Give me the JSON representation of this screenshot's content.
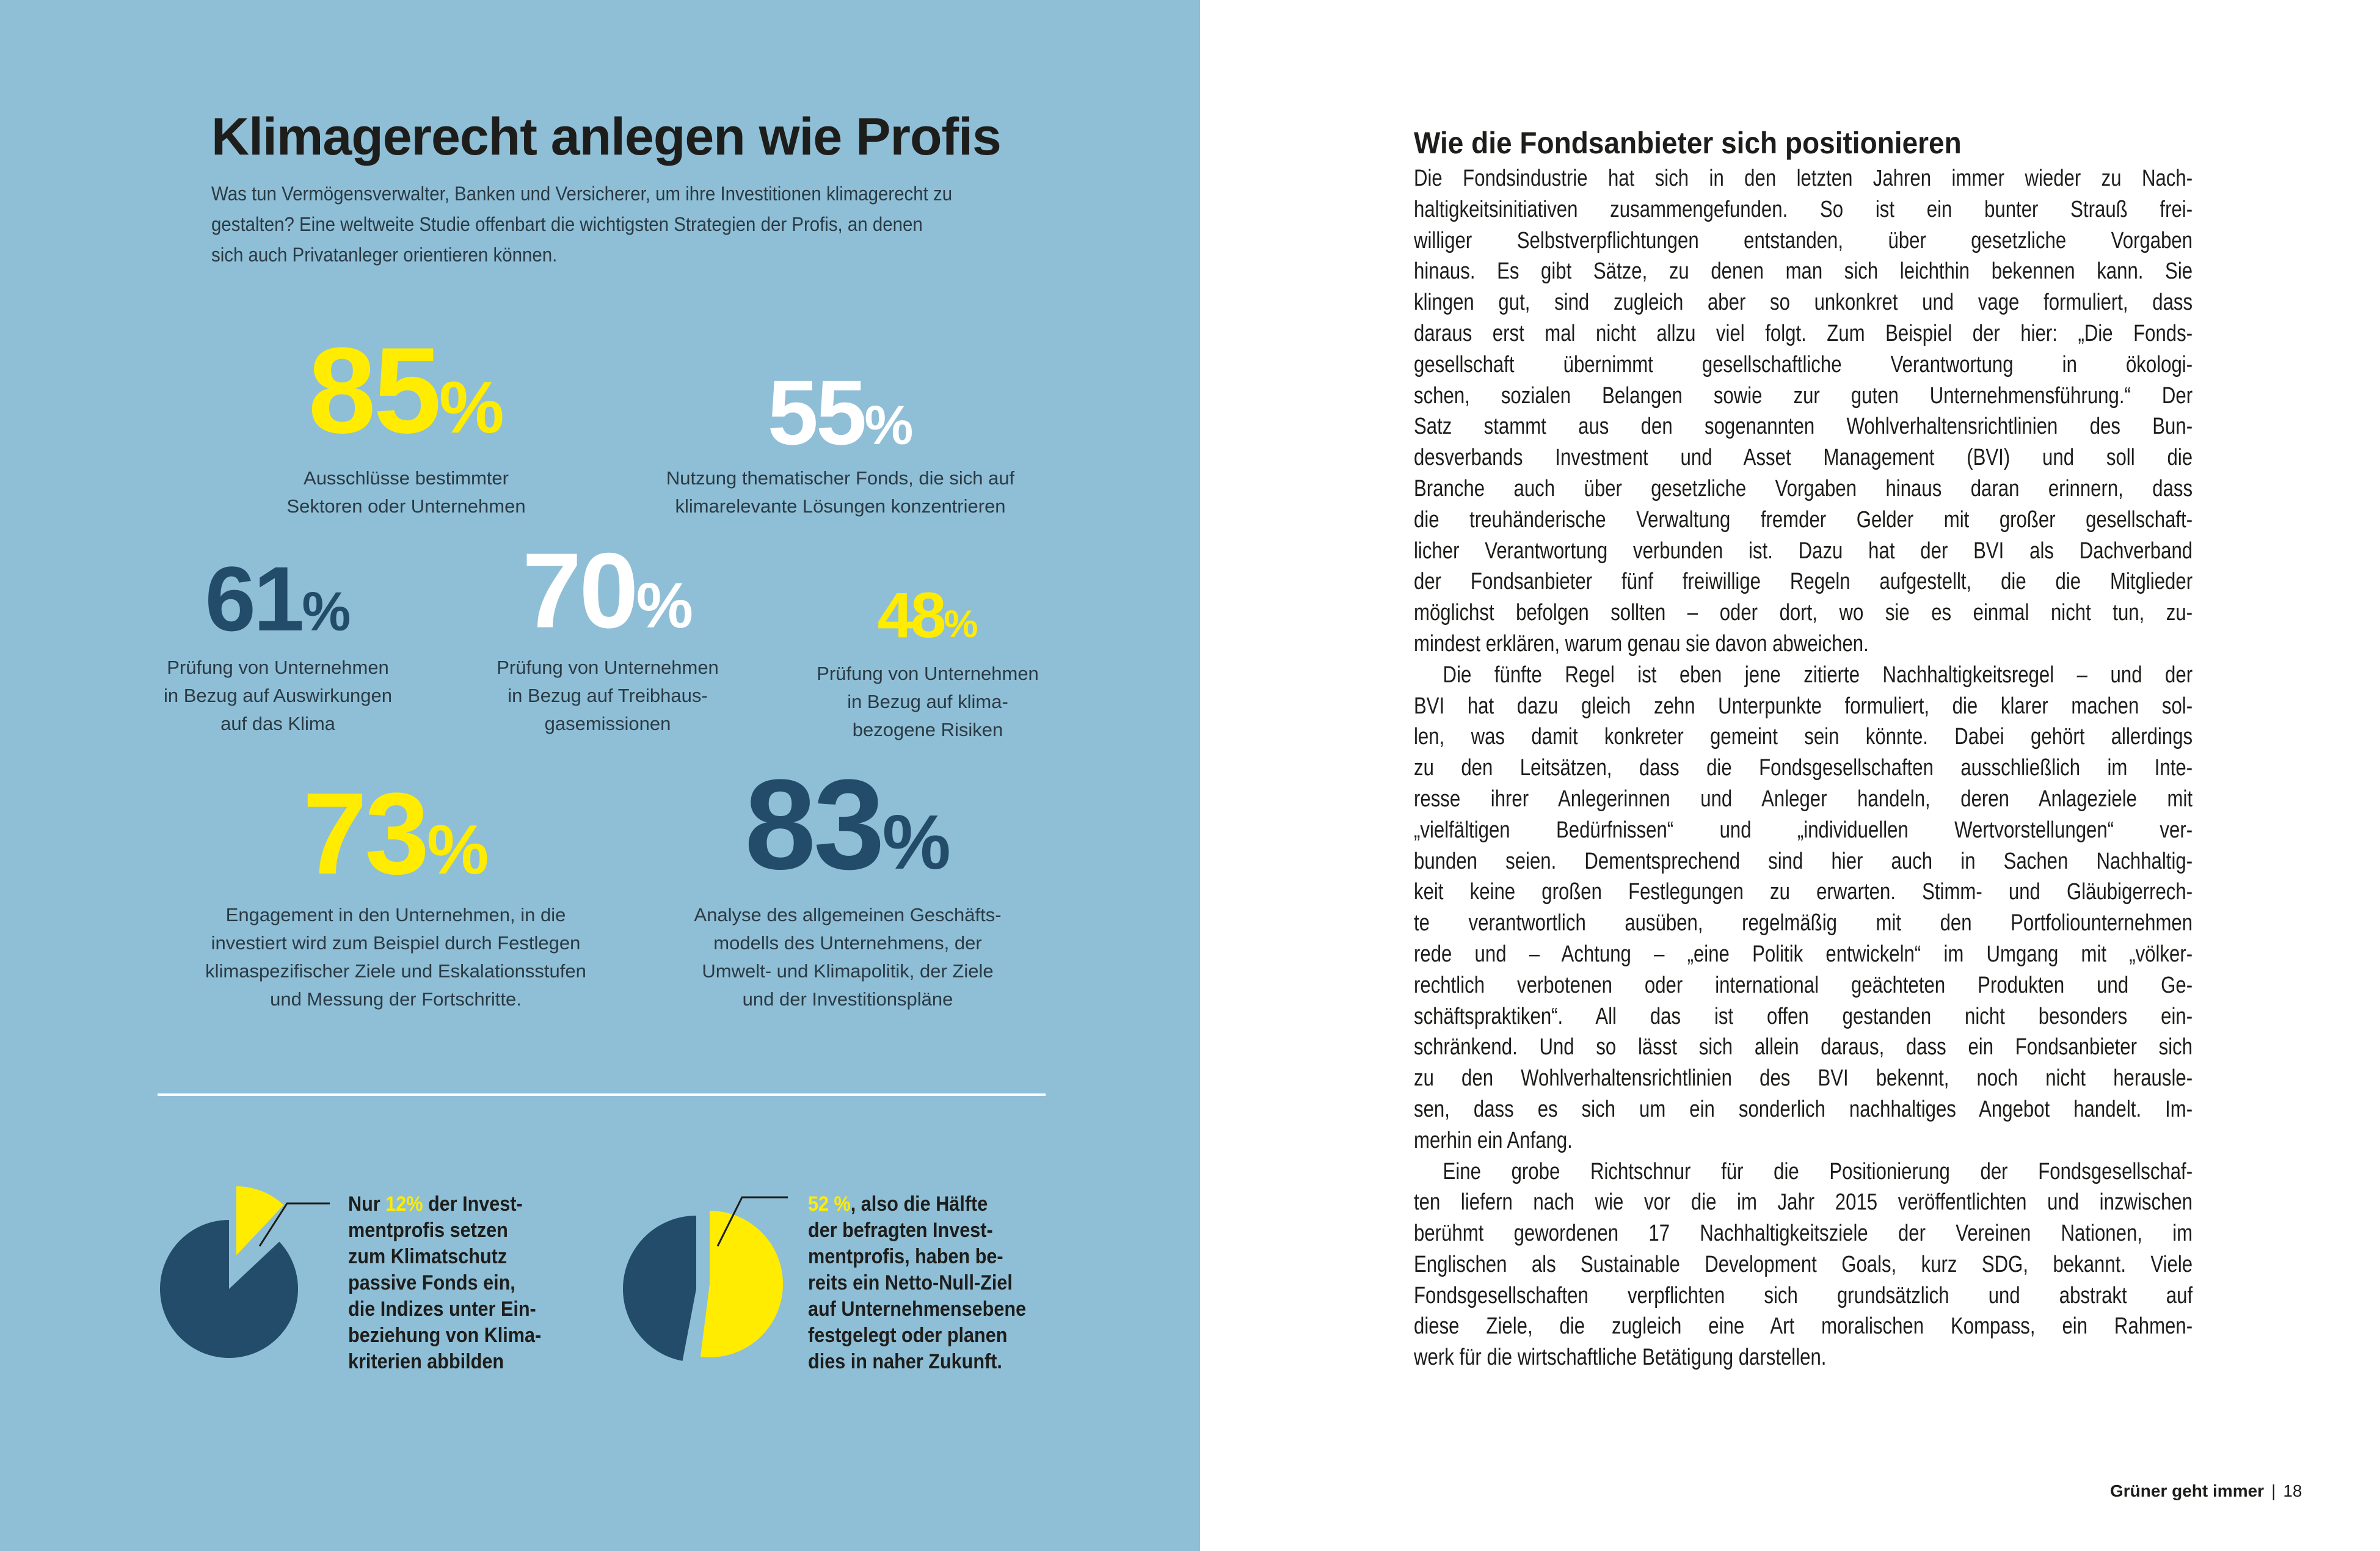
{
  "colors": {
    "background": "#8fbfd6",
    "yellow": "#ffec00",
    "dark_blue": "#234c6b",
    "white": "#ffffff"
  },
  "infographic": {
    "title": "Klimagerecht anlegen wie Profis",
    "subtitle": [
      "Was tun Vermögensverwalter, Banken und Versicherer, um ihre Investitionen klimagerecht zu",
      "gestalten? Eine weltweite Studie offenbart die wichtigsten Strategien der Profis, an denen",
      "sich auch Privatanleger orientieren können."
    ],
    "stats": [
      {
        "value": "85",
        "unit": "%",
        "label": [
          "Ausschlüsse bestimmter",
          "Sektoren oder Unternehmen"
        ]
      },
      {
        "value": "55",
        "unit": "%",
        "label": [
          "Nutzung thematischer Fonds, die sich auf",
          "klimarelevante Lösungen konzentrieren"
        ]
      },
      {
        "value": "61",
        "unit": "%",
        "label": [
          "Prüfung von Unternehmen",
          "in Bezug auf Auswirkungen",
          "auf das Klima"
        ]
      },
      {
        "value": "70",
        "unit": "%",
        "label": [
          "Prüfung von Unternehmen",
          "in Bezug auf Treibhaus-",
          "gasemissionen"
        ]
      },
      {
        "value": "48",
        "unit": "%",
        "label": [
          "Prüfung von Unternehmen",
          "in Bezug auf klima-",
          "bezogene Risiken"
        ]
      },
      {
        "value": "73",
        "unit": "%",
        "label": [
          "Engagement in den Unternehmen, in die",
          "investiert wird zum Beispiel durch Festlegen",
          "klimaspezifischer Ziele und Eskalationsstufen",
          "und Messung der Fortschritte."
        ]
      },
      {
        "value": "83",
        "unit": "%",
        "label": [
          "Analyse des allgemeinen Geschäfts-",
          "modells des Unternehmens, der",
          "Umwelt- und Klimapolitik, der Ziele",
          "und der Investitionspläne"
        ]
      }
    ],
    "pies": [
      {
        "percent": 12,
        "first_prefix": "Nur ",
        "highlight": "12%",
        "first_suffix": " der Invest-",
        "lines": [
          "mentprofis setzen",
          "zum Klimatschutz",
          "passive Fonds ein,",
          "die Indizes unter Ein-",
          "beziehung von Klima-",
          "kriterien abbilden"
        ]
      },
      {
        "percent": 52,
        "first_prefix": "",
        "highlight": "52 %",
        "first_suffix": ", also die Hälfte",
        "lines": [
          "der befragten Invest-",
          "mentprofis, haben be-",
          "reits ein Netto-Null-Ziel",
          "auf Unternehmensebene",
          "festgelegt oder planen",
          "dies in naher Zukunft."
        ]
      }
    ]
  },
  "chart_data": [
    {
      "type": "pie",
      "values": [
        12,
        88
      ],
      "highlighted": "12%"
    },
    {
      "type": "pie",
      "values": [
        52,
        48
      ],
      "highlighted": "52 %"
    }
  ],
  "article": {
    "heading": "Wie die Fondsanbieter sich positionieren",
    "paragraphs": [
      [
        "Die Fondsindustrie hat sich in den letzten Jahren immer wieder zu Nach-",
        "haltigkeitsinitiativen zusammengefunden. So ist ein bunter Strauß frei-",
        "williger Selbstverpflichtungen entstanden, über gesetzliche Vorgaben",
        "hinaus. Es gibt Sätze, zu denen man sich leichthin bekennen kann. Sie",
        "klingen gut, sind zugleich aber so unkonkret und vage formuliert, dass",
        "daraus erst mal nicht allzu viel folgt. Zum Beispiel der hier: „Die Fonds-",
        "gesellschaft übernimmt gesellschaftliche Verantwortung in ökologi-",
        "schen, sozialen Belangen sowie zur guten Unternehmensführung.“ Der",
        "Satz stammt aus den sogenannten Wohlverhaltensrichtlinien des Bun-",
        "desverbands Investment und Asset Management (BVI) und soll die",
        "Branche auch über gesetzliche Vorgaben hinaus daran erinnern, dass",
        "die treuhänderische Verwaltung fremder Gelder mit großer gesellschaft-",
        "licher Verantwortung verbunden ist. Dazu hat der BVI als Dachverband",
        "der Fondsanbieter fünf freiwillige Regeln aufgestellt, die die Mitglieder",
        "möglichst befolgen sollten – oder dort, wo sie es einmal nicht tun, zu-",
        "mindest erklären, warum genau sie davon abweichen."
      ],
      [
        "Die fünfte Regel ist eben jene zitierte Nachhaltigkeitsregel – und der",
        "BVI hat dazu gleich zehn Unterpunkte formuliert, die klarer machen sol-",
        "len, was damit konkreter gemeint sein könnte. Dabei gehört allerdings",
        "zu den Leitsätzen, dass die Fondsgesellschaften ausschließlich im Inte-",
        "resse ihrer Anlegerinnen und Anleger handeln, deren Anlageziele mit",
        "„vielfältigen Bedürfnissen“ und „individuellen Wertvorstellungen“ ver-",
        "bunden seien. Dementsprechend sind hier auch in Sachen Nachhaltig-",
        "keit keine großen Festlegungen zu erwarten. Stimm- und Gläubigerrech-",
        "te verantwortlich ausüben, regelmäßig mit den Portfoliounternehmen",
        "rede und – Achtung – „eine Politik entwickeln“ im Umgang mit „völker-",
        "rechtlich verbotenen oder international geächteten Produkten und Ge-",
        "schäftspraktiken“. All das ist offen gestanden nicht besonders ein-",
        "schränkend. Und so lässt sich allein daraus, dass ein Fondsanbieter sich",
        "zu den Wohlverhaltensrichtlinien des BVI bekennt, noch nicht herausle-",
        "sen, dass es sich um ein sonderlich nachhaltiges Angebot handelt. Im-",
        "merhin ein Anfang."
      ],
      [
        "Eine grobe Richtschnur für die Positionierung der Fondsgesellschaf-",
        "ten liefern nach wie vor die im Jahr 2015 veröffentlichten und inzwischen",
        "berühmt gewordenen 17 Nachhaltigkeitsziele der Vereinen Nationen, im",
        "Englischen als Sustainable Development Goals, kurz SDG, bekannt. Viele",
        "Fondsgesellschaften verpflichten sich grundsätzlich und abstrakt auf",
        "diese Ziele, die zugleich eine Art moralischen Kompass, ein Rahmen-",
        "werk für die wirtschaftliche Betätigung darstellen."
      ]
    ]
  },
  "footer": {
    "title": "Grüner geht immer",
    "separator": "|",
    "page": "18"
  }
}
